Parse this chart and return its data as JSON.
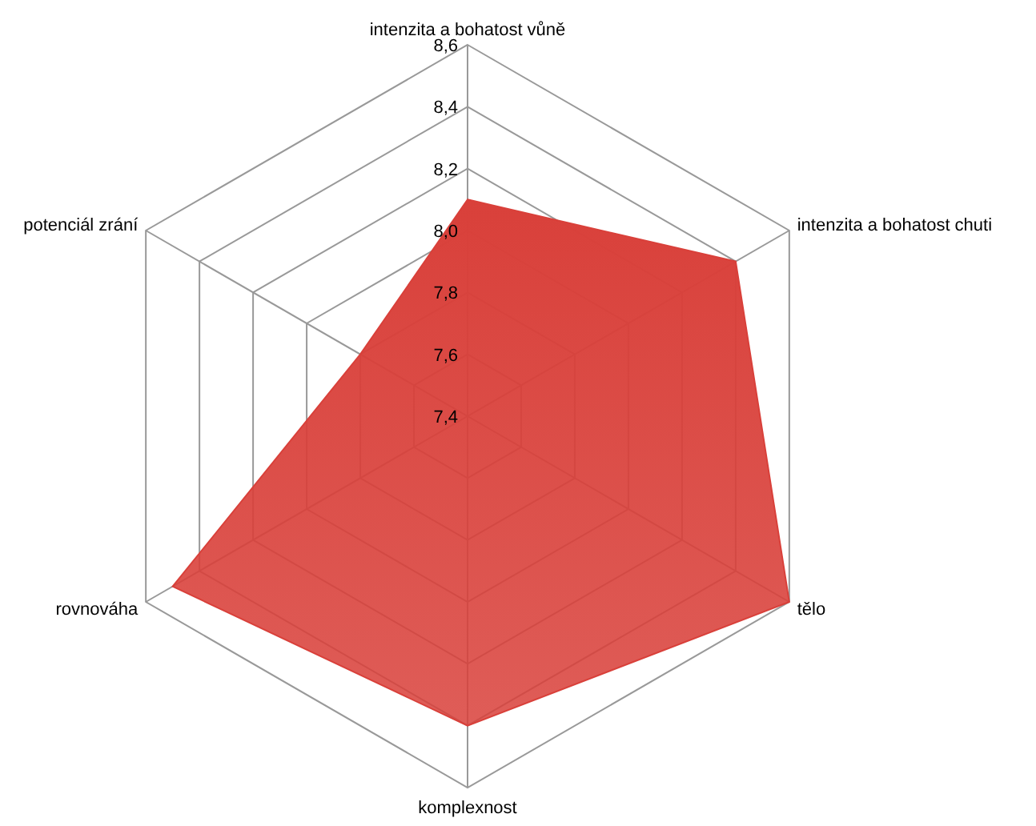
{
  "chart_data": {
    "type": "radar",
    "categories": [
      "intenzita a bohatost vůně",
      "intenzita a bohatost chuti",
      "tělo",
      "komplexnost",
      "rovnováha",
      "potenciál zrání"
    ],
    "series": [
      {
        "color": "#d9403a",
        "values": [
          8.1,
          8.4,
          8.6,
          8.4,
          8.5,
          7.8
        ]
      }
    ],
    "ylim": [
      7.4,
      8.6
    ],
    "yticks": [
      {
        "value": 7.4,
        "label": "7,4"
      },
      {
        "value": 7.6,
        "label": "7,6"
      },
      {
        "value": 7.8,
        "label": "7,8"
      },
      {
        "value": 8.0,
        "label": "8,0"
      },
      {
        "value": 8.2,
        "label": "8,2"
      },
      {
        "value": 8.4,
        "label": "8,4"
      },
      {
        "value": 8.6,
        "label": "8,6"
      }
    ],
    "grid": true
  }
}
